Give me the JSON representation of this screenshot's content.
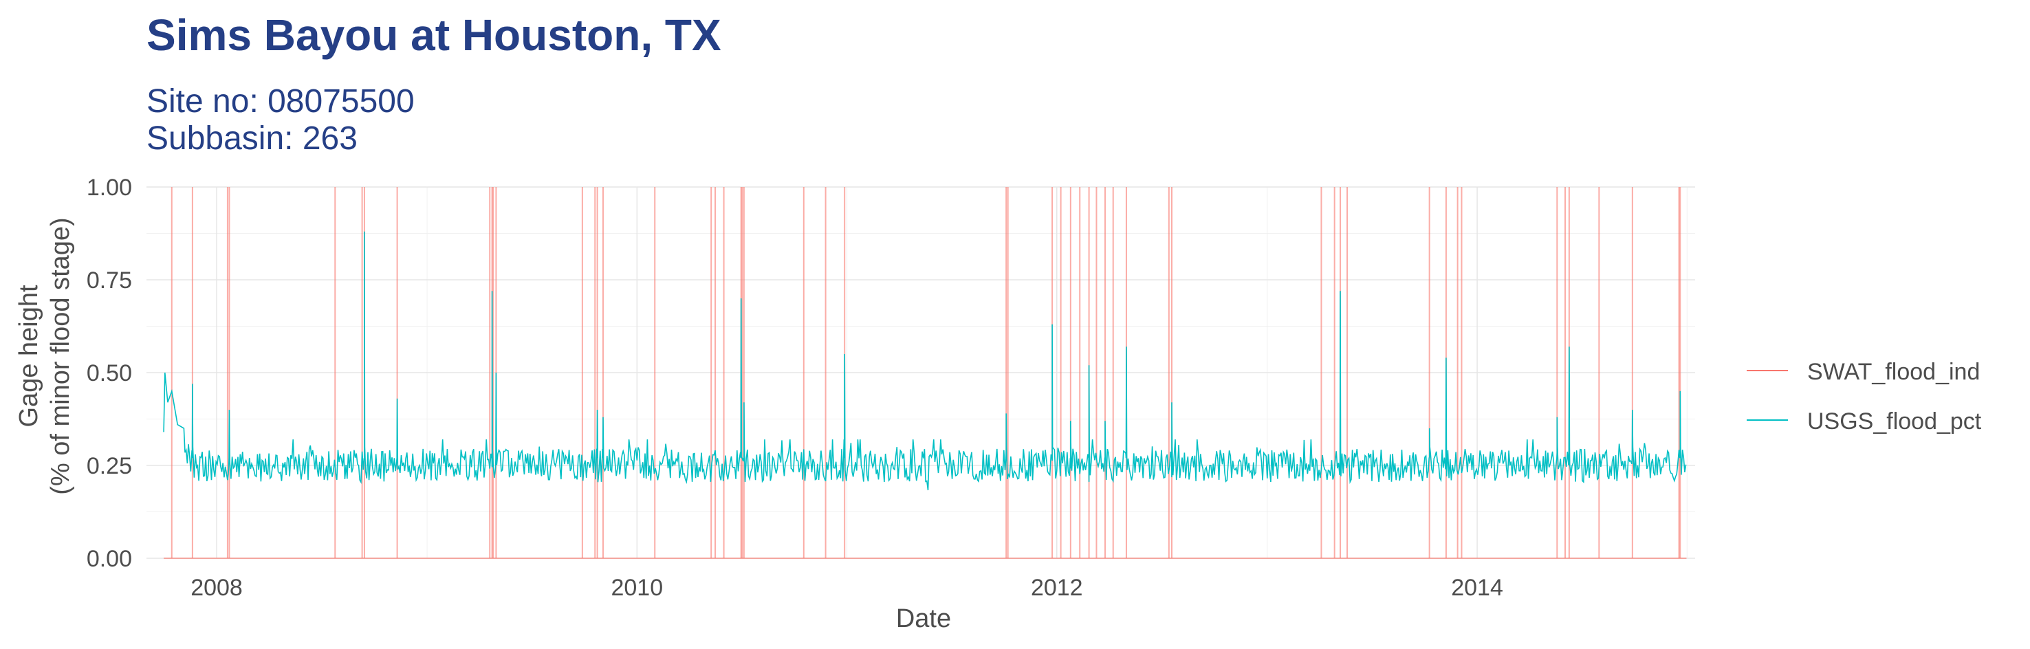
{
  "chart_data": {
    "type": "line",
    "title": "Sims Bayou at Houston, TX",
    "subtitle_lines": [
      "Site no: 08075500",
      "Subbasin: 263"
    ],
    "xlabel": "Date",
    "ylabel_lines": [
      "Gage height",
      "(% of minor flood stage)"
    ],
    "xlim": [
      "2007-09-01",
      "2015-01-15"
    ],
    "ylim": [
      0,
      1
    ],
    "x_ticks": [
      "2008",
      "2010",
      "2012",
      "2014"
    ],
    "y_ticks": [
      "0.00",
      "0.25",
      "0.50",
      "0.75",
      "1.00"
    ],
    "grid": true,
    "legend_position": "right",
    "series": [
      {
        "name": "SWAT_flood_ind",
        "color": "#f8766d",
        "baseline": 0,
        "x_start": "2007-10-01",
        "x_end": "2014-12-31",
        "flood_dates": [
          "2007-10-15",
          "2007-11-20",
          "2008-01-20",
          "2008-01-23",
          "2008-07-25",
          "2008-09-10",
          "2008-09-14",
          "2008-11-10",
          "2009-04-20",
          "2009-04-24",
          "2009-04-26",
          "2009-05-01",
          "2009-09-28",
          "2009-10-20",
          "2009-10-24",
          "2009-11-03",
          "2010-02-01",
          "2010-05-10",
          "2010-05-17",
          "2010-06-01",
          "2010-07-01",
          "2010-07-03",
          "2010-07-06",
          "2010-10-18",
          "2010-11-25",
          "2010-12-28",
          "2011-10-05",
          "2011-10-08",
          "2011-12-24",
          "2012-01-08",
          "2012-01-25",
          "2012-02-10",
          "2012-02-26",
          "2012-03-10",
          "2012-03-25",
          "2012-04-08",
          "2012-05-01",
          "2012-07-14",
          "2012-07-19",
          "2013-04-05",
          "2013-04-28",
          "2013-05-08",
          "2013-05-20",
          "2013-10-10",
          "2013-11-08",
          "2013-11-28",
          "2013-12-05",
          "2014-05-20",
          "2014-06-03",
          "2014-06-10",
          "2014-08-01",
          "2014-09-28",
          "2014-12-18",
          "2014-12-20"
        ]
      },
      {
        "name": "USGS_flood_pct",
        "color": "#00bfc4",
        "x_start": "2007-10-01",
        "x_end": "2014-12-31",
        "base_level": 0.25,
        "noise_range": [
          0.15,
          0.32
        ],
        "initial_values": [
          {
            "date": "2007-10-01",
            "value": 0.34
          },
          {
            "date": "2007-10-03",
            "value": 0.5
          },
          {
            "date": "2007-10-08",
            "value": 0.42
          },
          {
            "date": "2007-10-15",
            "value": 0.45
          },
          {
            "date": "2007-10-25",
            "value": 0.36
          },
          {
            "date": "2007-11-05",
            "value": 0.35
          }
        ],
        "spikes": [
          {
            "date": "2007-11-20",
            "value": 0.47
          },
          {
            "date": "2008-01-23",
            "value": 0.4
          },
          {
            "date": "2008-09-14",
            "value": 0.88
          },
          {
            "date": "2008-11-10",
            "value": 0.43
          },
          {
            "date": "2009-04-24",
            "value": 0.72
          },
          {
            "date": "2009-05-01",
            "value": 0.5
          },
          {
            "date": "2009-10-24",
            "value": 0.4
          },
          {
            "date": "2009-11-03",
            "value": 0.38
          },
          {
            "date": "2010-07-01",
            "value": 0.7
          },
          {
            "date": "2010-07-06",
            "value": 0.42
          },
          {
            "date": "2010-12-28",
            "value": 0.55
          },
          {
            "date": "2011-10-05",
            "value": 0.39
          },
          {
            "date": "2011-12-24",
            "value": 0.63
          },
          {
            "date": "2012-01-25",
            "value": 0.37
          },
          {
            "date": "2012-02-26",
            "value": 0.52
          },
          {
            "date": "2012-03-25",
            "value": 0.37
          },
          {
            "date": "2012-05-01",
            "value": 0.57
          },
          {
            "date": "2012-07-19",
            "value": 0.42
          },
          {
            "date": "2013-05-08",
            "value": 0.72
          },
          {
            "date": "2013-10-10",
            "value": 0.35
          },
          {
            "date": "2013-11-08",
            "value": 0.54
          },
          {
            "date": "2014-05-20",
            "value": 0.38
          },
          {
            "date": "2014-06-10",
            "value": 0.57
          },
          {
            "date": "2014-09-28",
            "value": 0.4
          },
          {
            "date": "2014-12-20",
            "value": 0.45
          }
        ]
      }
    ]
  }
}
